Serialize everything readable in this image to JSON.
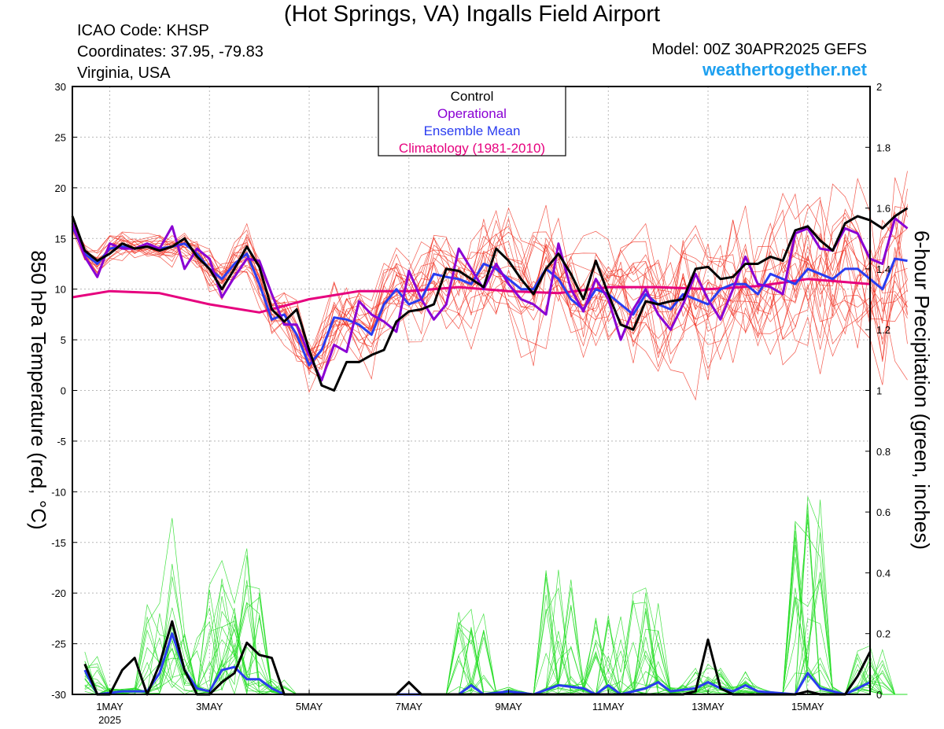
{
  "header": {
    "title": "(Hot Springs, VA) Ingalls Field Airport",
    "icao": "ICAO Code: KHSP",
    "coords": "Coordinates: 37.95, -79.83",
    "region": "Virginia, USA",
    "model": "Model: 00Z 30APR2025 GEFS",
    "site": "weathertogether.net"
  },
  "colors": {
    "control": "#000000",
    "operational": "#8a00d4",
    "ensemble_mean": "#2a3cf0",
    "climatology": "#e6007e",
    "members_temp": "#f03020",
    "members_precip": "#22dd22",
    "site": "#1ea0f0"
  },
  "chart_data": {
    "type": "line",
    "y_left": {
      "label": "850 hPa Temperature (red, °C)",
      "range": [
        -30,
        30
      ],
      "ticks": [
        "30",
        "25",
        "20",
        "15",
        "10",
        "5",
        "0",
        "-5",
        "-10",
        "-15",
        "-20",
        "-25",
        "-30"
      ]
    },
    "y_right": {
      "label": "6-hour Precipitation (green, inches)",
      "range": [
        0,
        2
      ],
      "ticks": [
        "2",
        "1.8",
        "1.6",
        "1.4",
        "1.2",
        "1",
        "0.8",
        "0.6",
        "0.4",
        "0.2",
        "0"
      ]
    },
    "x_day_range": [
      0.25,
      16.25
    ],
    "x_ticks": [
      {
        "day": 1,
        "label": "1MAY",
        "sub": "2025"
      },
      {
        "day": 3,
        "label": "3MAY",
        "sub": ""
      },
      {
        "day": 5,
        "label": "5MAY",
        "sub": ""
      },
      {
        "day": 7,
        "label": "7MAY",
        "sub": ""
      },
      {
        "day": 9,
        "label": "9MAY",
        "sub": ""
      },
      {
        "day": 11,
        "label": "11MAY",
        "sub": ""
      },
      {
        "day": 13,
        "label": "13MAY",
        "sub": ""
      },
      {
        "day": 15,
        "label": "15MAY",
        "sub": ""
      }
    ],
    "grid": true,
    "legend": {
      "position": "top-center",
      "entries": [
        {
          "label": "Control",
          "color": "#000000"
        },
        {
          "label": "Operational",
          "color": "#8a00d4"
        },
        {
          "label": "Ensemble Mean",
          "color": "#2a3cf0"
        },
        {
          "label": "Climatology (1981-2010)",
          "color": "#e6007e"
        }
      ]
    },
    "temperature": {
      "control": [
        17.2,
        13.8,
        12.8,
        13.5,
        14.5,
        14.0,
        14.2,
        13.8,
        14.2,
        15.0,
        13.2,
        12.0,
        10.0,
        12.0,
        14.2,
        12.2,
        8.0,
        6.8,
        8.0,
        4.0,
        0.5,
        0.0,
        2.8,
        2.8,
        3.5,
        4.0,
        6.8,
        7.8,
        8.0,
        8.5,
        12.0,
        11.8,
        11.0,
        10.2,
        14.0,
        12.8,
        11.0,
        9.5,
        12.0,
        13.5,
        11.5,
        9.0,
        12.8,
        9.5,
        6.5,
        6.0,
        8.8,
        8.5,
        8.8,
        9.0,
        12.0,
        12.2,
        11.0,
        11.2,
        12.5,
        12.5,
        13.2,
        12.8,
        15.8,
        16.2,
        14.8,
        13.8,
        16.5,
        17.2,
        16.8,
        16.0,
        17.2,
        18.0
      ],
      "operational": [
        16.5,
        13.2,
        11.2,
        14.5,
        14.0,
        14.0,
        14.5,
        14.0,
        16.2,
        12.0,
        14.0,
        13.0,
        9.2,
        11.2,
        13.0,
        12.8,
        9.5,
        6.5,
        6.5,
        3.5,
        1.0,
        4.5,
        3.8,
        8.8,
        7.5,
        6.8,
        5.8,
        11.8,
        9.0,
        7.0,
        8.5,
        14.0,
        12.0,
        10.0,
        12.5,
        10.5,
        9.0,
        8.5,
        7.5,
        14.5,
        10.0,
        7.8,
        11.0,
        9.0,
        5.0,
        8.0,
        10.0,
        7.5,
        6.0,
        8.5,
        11.5,
        9.0,
        7.0,
        10.0,
        13.2,
        10.5,
        10.2,
        9.5,
        15.5,
        16.0,
        14.0,
        13.8,
        16.0,
        15.5,
        13.0,
        12.5,
        17.0,
        16.0
      ],
      "ensemble_mean": [
        16.2,
        13.5,
        12.5,
        14.0,
        14.2,
        14.0,
        14.2,
        14.0,
        14.2,
        14.5,
        13.5,
        12.0,
        11.0,
        12.5,
        13.5,
        10.5,
        7.0,
        7.5,
        5.5,
        2.5,
        4.0,
        7.2,
        7.0,
        6.5,
        5.5,
        8.5,
        10.0,
        8.5,
        9.0,
        11.5,
        11.2,
        11.0,
        10.5,
        12.5,
        12.0,
        11.0,
        10.0,
        10.0,
        12.0,
        11.0,
        9.0,
        8.0,
        10.0,
        9.5,
        8.5,
        7.5,
        9.5,
        8.5,
        8.0,
        9.5,
        9.0,
        8.5,
        10.0,
        10.5,
        10.5,
        9.5,
        11.5,
        11.0,
        10.5,
        12.0,
        11.5,
        11.0,
        12.0,
        12.0,
        11.0,
        10.0,
        13.0,
        12.8
      ],
      "climatology": [
        {
          "day": 0.25,
          "v": 9.2
        },
        {
          "day": 1.0,
          "v": 9.8
        },
        {
          "day": 2.0,
          "v": 9.6
        },
        {
          "day": 3.0,
          "v": 8.5
        },
        {
          "day": 4.0,
          "v": 7.7
        },
        {
          "day": 5.0,
          "v": 9.0
        },
        {
          "day": 6.0,
          "v": 9.8
        },
        {
          "day": 7.0,
          "v": 9.8
        },
        {
          "day": 8.0,
          "v": 10.2
        },
        {
          "day": 9.0,
          "v": 9.8
        },
        {
          "day": 10.0,
          "v": 9.6
        },
        {
          "day": 11.0,
          "v": 10.2
        },
        {
          "day": 12.0,
          "v": 10.2
        },
        {
          "day": 13.0,
          "v": 10.0
        },
        {
          "day": 14.0,
          "v": 10.3
        },
        {
          "day": 15.0,
          "v": 11.0
        },
        {
          "day": 16.25,
          "v": 10.5
        }
      ]
    },
    "precipitation": {
      "control_points": [
        {
          "day": 0.5,
          "v": 0.1
        },
        {
          "day": 0.75,
          "v": 0.0
        },
        {
          "day": 1.0,
          "v": 0.0
        },
        {
          "day": 1.25,
          "v": 0.08
        },
        {
          "day": 1.5,
          "v": 0.12
        },
        {
          "day": 1.75,
          "v": 0.0
        },
        {
          "day": 2.0,
          "v": 0.1
        },
        {
          "day": 2.25,
          "v": 0.24
        },
        {
          "day": 2.5,
          "v": 0.08
        },
        {
          "day": 2.75,
          "v": 0.0
        },
        {
          "day": 3.0,
          "v": 0.0
        },
        {
          "day": 3.25,
          "v": 0.04
        },
        {
          "day": 3.5,
          "v": 0.07
        },
        {
          "day": 3.75,
          "v": 0.17
        },
        {
          "day": 4.0,
          "v": 0.13
        },
        {
          "day": 4.25,
          "v": 0.12
        },
        {
          "day": 4.5,
          "v": 0.0
        },
        {
          "day": 6.75,
          "v": 0.0
        },
        {
          "day": 7.0,
          "v": 0.04
        },
        {
          "day": 7.25,
          "v": 0.0
        },
        {
          "day": 12.5,
          "v": 0.0
        },
        {
          "day": 12.75,
          "v": 0.01
        },
        {
          "day": 13.0,
          "v": 0.18
        },
        {
          "day": 13.25,
          "v": 0.02
        },
        {
          "day": 13.5,
          "v": 0.0
        },
        {
          "day": 14.75,
          "v": 0.0
        },
        {
          "day": 15.0,
          "v": 0.01
        },
        {
          "day": 15.25,
          "v": 0.0
        },
        {
          "day": 15.75,
          "v": 0.0
        },
        {
          "day": 16.0,
          "v": 0.06
        },
        {
          "day": 16.25,
          "v": 0.14
        }
      ],
      "ensemble_mean_points": [
        {
          "day": 0.5,
          "v": 0.08
        },
        {
          "day": 0.75,
          "v": 0.0
        },
        {
          "day": 1.25,
          "v": 0.01
        },
        {
          "day": 1.75,
          "v": 0.01
        },
        {
          "day": 2.0,
          "v": 0.07
        },
        {
          "day": 2.25,
          "v": 0.2
        },
        {
          "day": 2.5,
          "v": 0.08
        },
        {
          "day": 2.75,
          "v": 0.02
        },
        {
          "day": 3.0,
          "v": 0.01
        },
        {
          "day": 3.25,
          "v": 0.08
        },
        {
          "day": 3.5,
          "v": 0.09
        },
        {
          "day": 3.75,
          "v": 0.05
        },
        {
          "day": 4.0,
          "v": 0.05
        },
        {
          "day": 4.25,
          "v": 0.02
        },
        {
          "day": 4.5,
          "v": 0.0
        },
        {
          "day": 8.0,
          "v": 0.0
        },
        {
          "day": 8.25,
          "v": 0.03
        },
        {
          "day": 8.5,
          "v": 0.0
        },
        {
          "day": 9.0,
          "v": 0.01
        },
        {
          "day": 9.5,
          "v": 0.0
        },
        {
          "day": 10.0,
          "v": 0.03
        },
        {
          "day": 10.5,
          "v": 0.02
        },
        {
          "day": 10.75,
          "v": 0.0
        },
        {
          "day": 11.0,
          "v": 0.03
        },
        {
          "day": 11.25,
          "v": 0.0
        },
        {
          "day": 11.75,
          "v": 0.02
        },
        {
          "day": 12.0,
          "v": 0.04
        },
        {
          "day": 12.25,
          "v": 0.01
        },
        {
          "day": 12.75,
          "v": 0.02
        },
        {
          "day": 13.0,
          "v": 0.04
        },
        {
          "day": 13.25,
          "v": 0.02
        },
        {
          "day": 13.5,
          "v": 0.01
        },
        {
          "day": 13.75,
          "v": 0.03
        },
        {
          "day": 14.0,
          "v": 0.01
        },
        {
          "day": 14.75,
          "v": 0.0
        },
        {
          "day": 15.0,
          "v": 0.07
        },
        {
          "day": 15.25,
          "v": 0.02
        },
        {
          "day": 15.5,
          "v": 0.01
        },
        {
          "day": 15.75,
          "v": 0.0
        },
        {
          "day": 16.0,
          "v": 0.02
        },
        {
          "day": 16.25,
          "v": 0.04
        }
      ],
      "members_max_points": [
        {
          "day": 0.5,
          "v": 0.14
        },
        {
          "day": 1.0,
          "v": 0.02
        },
        {
          "day": 2.0,
          "v": 0.3
        },
        {
          "day": 2.25,
          "v": 0.58
        },
        {
          "day": 2.5,
          "v": 0.2
        },
        {
          "day": 3.0,
          "v": 0.36
        },
        {
          "day": 3.25,
          "v": 0.44
        },
        {
          "day": 3.5,
          "v": 0.3
        },
        {
          "day": 3.75,
          "v": 0.48
        },
        {
          "day": 4.25,
          "v": 0.05
        },
        {
          "day": 8.25,
          "v": 0.28
        },
        {
          "day": 10.0,
          "v": 0.41
        },
        {
          "day": 11.0,
          "v": 0.26
        },
        {
          "day": 11.75,
          "v": 0.35
        },
        {
          "day": 13.0,
          "v": 0.1
        },
        {
          "day": 15.0,
          "v": 0.65
        },
        {
          "day": 16.25,
          "v": 0.16
        }
      ]
    }
  }
}
